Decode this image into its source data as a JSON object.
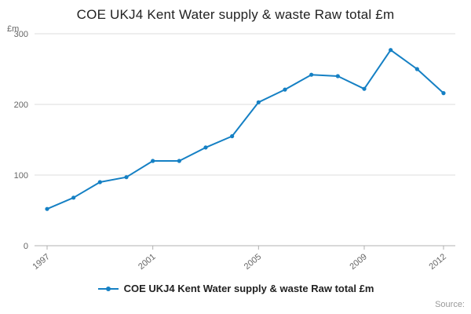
{
  "title": "COE UKJ4 Kent Water supply & waste Raw total £m",
  "legend": {
    "label": "COE UKJ4 Kent Water supply & waste Raw total £m"
  },
  "source": {
    "label": "Source:"
  },
  "chart_data": {
    "type": "line",
    "title": "COE UKJ4 Kent Water supply & waste Raw total £m",
    "xlabel": "",
    "ylabel": "£m",
    "x": [
      1997,
      1998,
      1999,
      2000,
      2001,
      2002,
      2003,
      2004,
      2005,
      2006,
      2007,
      2008,
      2009,
      2010,
      2011,
      2012
    ],
    "values": [
      52,
      68,
      90,
      97,
      120,
      120,
      139,
      155,
      203,
      221,
      242,
      240,
      222,
      277,
      250,
      216
    ],
    "series_name": "COE UKJ4 Kent Water supply & waste Raw total £m",
    "ylim": [
      0,
      300
    ],
    "yticks": [
      0,
      100,
      200,
      300
    ],
    "xticks": [
      1997,
      2001,
      2005,
      2009,
      2012
    ],
    "grid": true,
    "legend_position": "bottom",
    "line_color": "#1580c4",
    "axis_color": "#b0b0b0",
    "grid_color": "#dcdcdc",
    "tick_label_color": "#666666"
  }
}
